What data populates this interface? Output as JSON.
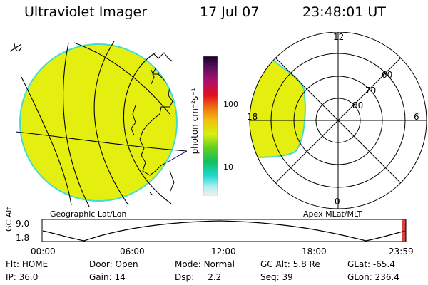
{
  "header": {
    "instrument": "Ultraviolet Imager",
    "date": "17 Jul 07",
    "time": "23:48:01 UT"
  },
  "colorbar": {
    "unit_label": "photon cm⁻²s⁻¹",
    "ticks": [
      "100",
      "10"
    ]
  },
  "panels": {
    "geo_label": "Geographic Lat/Lon",
    "polar_label": "Apex MLat/MLT",
    "polar_lat_labels": [
      "80",
      "70",
      "60"
    ],
    "polar_mlt_labels": {
      "top": "12",
      "right": "6",
      "bottom": "0",
      "left": "18"
    }
  },
  "altitude_plot": {
    "ylabel": "GC Alt",
    "yticks": [
      "9.0",
      "1.8"
    ],
    "xticks": [
      "00:00",
      "06:00",
      "12:00",
      "18:00",
      "23:59"
    ]
  },
  "status": {
    "flt_label": "Flt:",
    "flt_value": "HOME",
    "ip_label": "IP:",
    "ip_value": "36.0",
    "door_label": "Door:",
    "door_value": "Open",
    "gain_label": "Gain:",
    "gain_value": "14",
    "mode_label": "Mode:",
    "mode_value": "Normal",
    "dsp_label": "Dsp:",
    "dsp_value": "2.2",
    "gcalt_label": "GC Alt:",
    "gcalt_value": "5.8 Re",
    "seq_label": "Seq:",
    "seq_value": "39",
    "glat_label": "GLat:",
    "glat_value": "-65.4",
    "glon_label": "GLon:",
    "glon_value": "236.4"
  },
  "colors": {
    "emission": "#e4ef10",
    "emission_edge": "#44ddcc",
    "grid": "#000000",
    "marker": "#cc0000"
  }
}
